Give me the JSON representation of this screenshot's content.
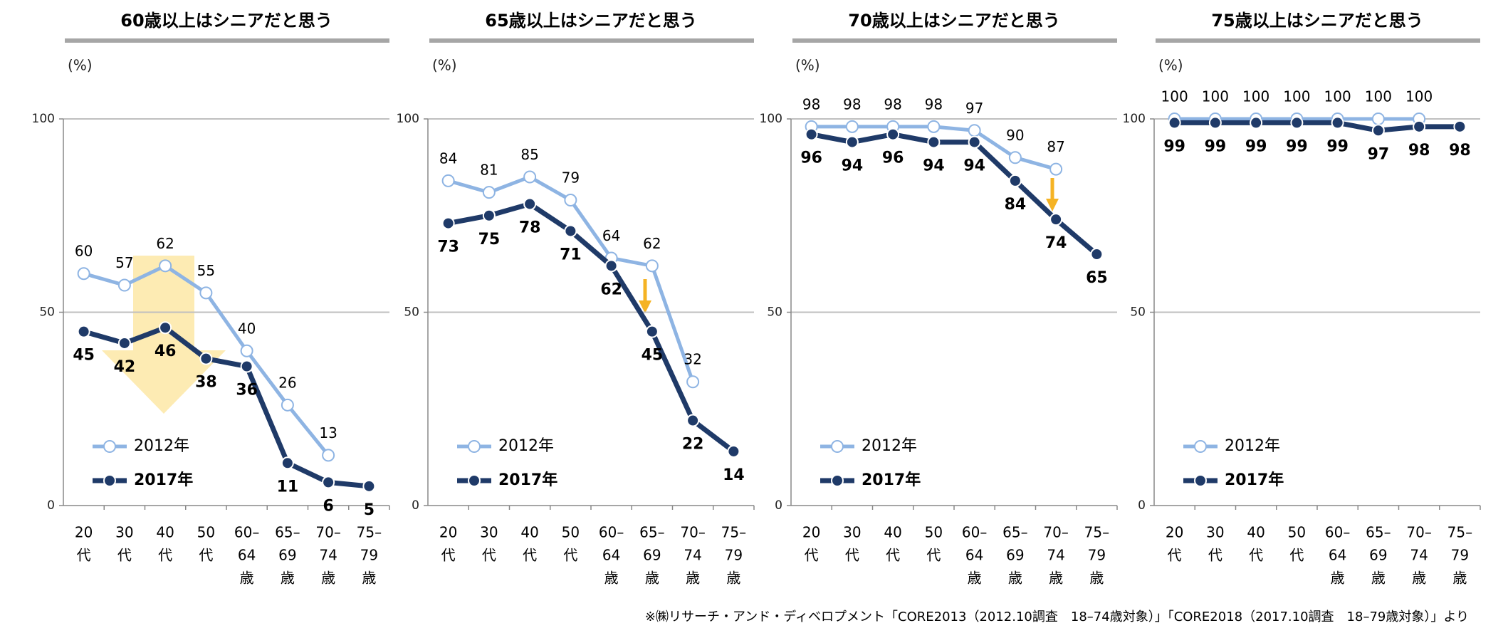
{
  "chart_data": [
    {
      "type": "line",
      "title": "60歳以上はシニアだと思う",
      "y_label": "(%)",
      "categories": [
        [
          "20",
          "代"
        ],
        [
          "30",
          "代"
        ],
        [
          "40",
          "代"
        ],
        [
          "50",
          "代"
        ],
        [
          "60–",
          "64",
          "歳"
        ],
        [
          "65–",
          "69",
          "歳"
        ],
        [
          "70–",
          "74",
          "歳"
        ],
        [
          "75–",
          "79",
          "歳"
        ]
      ],
      "series": [
        {
          "name": "2012年",
          "color": "#8eb4e3",
          "values": [
            60,
            57,
            62,
            55,
            40,
            26,
            13,
            null
          ]
        },
        {
          "name": "2017年",
          "color": "#1f3a68",
          "values": [
            45,
            42,
            46,
            38,
            36,
            11,
            6,
            5
          ]
        }
      ],
      "ylim": [
        0,
        100
      ],
      "yticks": [
        0,
        50,
        100
      ],
      "grid": true
    },
    {
      "type": "line",
      "title": "65歳以上はシニアだと思う",
      "y_label": "(%)",
      "categories": [
        [
          "20",
          "代"
        ],
        [
          "30",
          "代"
        ],
        [
          "40",
          "代"
        ],
        [
          "50",
          "代"
        ],
        [
          "60–",
          "64",
          "歳"
        ],
        [
          "65–",
          "69",
          "歳"
        ],
        [
          "70–",
          "74",
          "歳"
        ],
        [
          "75–",
          "79",
          "歳"
        ]
      ],
      "series": [
        {
          "name": "2012年",
          "color": "#8eb4e3",
          "values": [
            84,
            81,
            85,
            79,
            64,
            62,
            32,
            null
          ]
        },
        {
          "name": "2017年",
          "color": "#1f3a68",
          "values": [
            73,
            75,
            78,
            71,
            62,
            45,
            22,
            14
          ]
        }
      ],
      "ylim": [
        0,
        100
      ],
      "yticks": [
        0,
        50,
        100
      ],
      "grid": true
    },
    {
      "type": "line",
      "title": "70歳以上はシニアだと思う",
      "y_label": "(%)",
      "categories": [
        [
          "20",
          "代"
        ],
        [
          "30",
          "代"
        ],
        [
          "40",
          "代"
        ],
        [
          "50",
          "代"
        ],
        [
          "60–",
          "64",
          "歳"
        ],
        [
          "65–",
          "69",
          "歳"
        ],
        [
          "70–",
          "74",
          "歳"
        ],
        [
          "75–",
          "79",
          "歳"
        ]
      ],
      "series": [
        {
          "name": "2012年",
          "color": "#8eb4e3",
          "values": [
            98,
            98,
            98,
            98,
            97,
            90,
            87,
            null
          ]
        },
        {
          "name": "2017年",
          "color": "#1f3a68",
          "values": [
            96,
            94,
            96,
            94,
            94,
            84,
            74,
            65
          ]
        }
      ],
      "ylim": [
        0,
        100
      ],
      "yticks": [
        0,
        50,
        100
      ],
      "grid": true
    },
    {
      "type": "line",
      "title": "75歳以上はシニアだと思う",
      "y_label": "(%)",
      "categories": [
        [
          "20",
          "代"
        ],
        [
          "30",
          "代"
        ],
        [
          "40",
          "代"
        ],
        [
          "50",
          "代"
        ],
        [
          "60–",
          "64",
          "歳"
        ],
        [
          "65–",
          "69",
          "歳"
        ],
        [
          "70–",
          "74",
          "歳"
        ],
        [
          "75–",
          "79",
          "歳"
        ]
      ],
      "series": [
        {
          "name": "2012年",
          "color": "#8eb4e3",
          "values": [
            100,
            100,
            100,
            100,
            100,
            100,
            100,
            null
          ]
        },
        {
          "name": "2017年",
          "color": "#1f3a68",
          "values": [
            99,
            99,
            99,
            99,
            99,
            97,
            98,
            98
          ]
        }
      ],
      "ylim": [
        0,
        100
      ],
      "yticks": [
        0,
        50,
        100
      ],
      "grid": true
    }
  ],
  "footnote": "※㈱リサーチ・アンド・ディベロプメント「CORE2013（2012.10調査　18–74歳対象）」「CORE2018（2017.10調査　18–79歳対象）」より"
}
